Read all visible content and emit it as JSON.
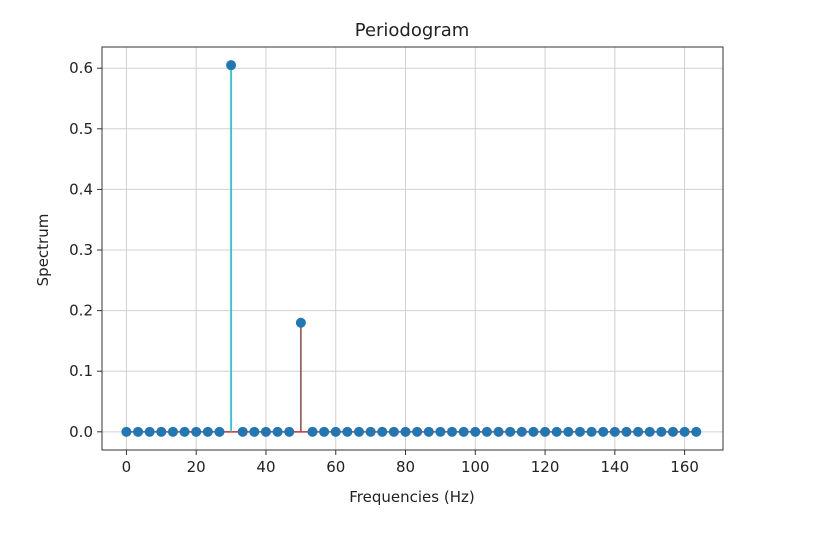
{
  "chart_data": {
    "type": "stem",
    "title": "Periodogram",
    "xlabel": "Frequencies (Hz)",
    "ylabel": "Spectrum",
    "xlim": [
      -7,
      171
    ],
    "ylim": [
      -0.03,
      0.635
    ],
    "xticks": [
      0,
      20,
      40,
      60,
      80,
      100,
      120,
      140,
      160
    ],
    "xtick_labels": [
      "0",
      "20",
      "40",
      "60",
      "80",
      "100",
      "120",
      "140",
      "160"
    ],
    "yticks": [
      0.0,
      0.1,
      0.2,
      0.3,
      0.4,
      0.5,
      0.6
    ],
    "ytick_labels": [
      "0.0",
      "0.1",
      "0.2",
      "0.3",
      "0.4",
      "0.5",
      "0.6"
    ],
    "grid": true,
    "x_step": 3.3333,
    "x_count": 50,
    "baseline": 0,
    "peaks": [
      {
        "x": 30,
        "y": 0.605
      },
      {
        "x": 50,
        "y": 0.18
      }
    ],
    "colors": {
      "marker": "#1f77b4",
      "baseline": "#d62728",
      "stem_peak1": "#17becf",
      "stem_peak2": "#8c564b",
      "grid": "#d0d0d0",
      "axes": "#333333"
    }
  }
}
